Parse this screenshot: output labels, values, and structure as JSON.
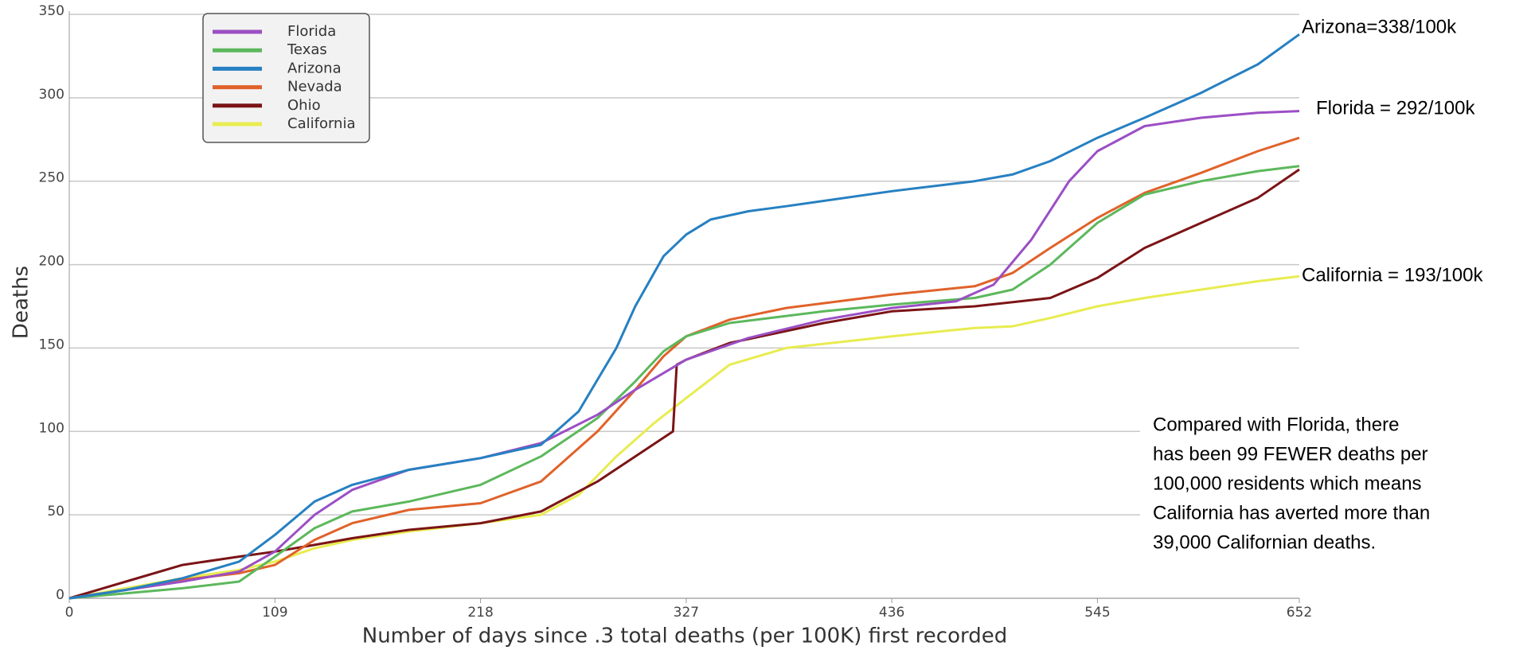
{
  "chart_data": {
    "type": "line",
    "ylabel": "Deaths",
    "xlabel": "Number of days since .3 total deaths (per 100K) first recorded",
    "xlim": [
      0,
      652
    ],
    "xticks": [
      0,
      109,
      218,
      327,
      436,
      545,
      652
    ],
    "ylim": [
      0,
      350
    ],
    "yticks": [
      0,
      50,
      100,
      150,
      200,
      250,
      300,
      350
    ],
    "grid": true,
    "legend": "upper left",
    "series": [
      {
        "name": "Florida",
        "color": "#9b4fc4",
        "x": [
          0,
          30,
          60,
          90,
          109,
          130,
          150,
          180,
          218,
          250,
          280,
          300,
          327,
          360,
          400,
          436,
          470,
          490,
          510,
          530,
          545,
          570,
          600,
          630,
          652
        ],
        "values": [
          0,
          5,
          10,
          16,
          28,
          50,
          65,
          77,
          84,
          93,
          110,
          125,
          143,
          156,
          167,
          174,
          178,
          188,
          215,
          250,
          268,
          283,
          288,
          291,
          292
        ]
      },
      {
        "name": "Texas",
        "color": "#5cb85c",
        "x": [
          0,
          30,
          60,
          90,
          109,
          130,
          150,
          180,
          218,
          250,
          280,
          300,
          315,
          327,
          350,
          400,
          436,
          480,
          500,
          520,
          545,
          570,
          600,
          630,
          652
        ],
        "values": [
          0,
          3,
          6,
          10,
          25,
          42,
          52,
          58,
          68,
          85,
          108,
          130,
          148,
          157,
          165,
          172,
          176,
          180,
          185,
          200,
          225,
          242,
          250,
          256,
          259
        ]
      },
      {
        "name": "Arizona",
        "color": "#2680c2",
        "x": [
          0,
          30,
          60,
          90,
          109,
          130,
          150,
          180,
          218,
          250,
          270,
          290,
          300,
          315,
          327,
          340,
          360,
          380,
          436,
          480,
          500,
          520,
          545,
          570,
          600,
          630,
          652
        ],
        "values": [
          0,
          5,
          12,
          22,
          38,
          58,
          68,
          77,
          84,
          92,
          112,
          150,
          175,
          205,
          218,
          227,
          232,
          235,
          244,
          250,
          254,
          262,
          276,
          288,
          303,
          320,
          338
        ]
      },
      {
        "name": "Nevada",
        "color": "#e0622a",
        "x": [
          0,
          30,
          60,
          90,
          109,
          130,
          150,
          180,
          218,
          250,
          280,
          300,
          315,
          327,
          350,
          380,
          436,
          480,
          500,
          520,
          545,
          570,
          600,
          630,
          652
        ],
        "values": [
          0,
          5,
          11,
          15,
          20,
          35,
          45,
          53,
          57,
          70,
          100,
          125,
          145,
          157,
          167,
          174,
          182,
          187,
          195,
          210,
          228,
          243,
          255,
          268,
          276
        ]
      },
      {
        "name": "Ohio",
        "color": "#7b1416",
        "x": [
          0,
          30,
          60,
          90,
          109,
          130,
          150,
          180,
          218,
          250,
          280,
          300,
          320,
          322,
          327,
          350,
          400,
          436,
          480,
          520,
          545,
          570,
          600,
          630,
          652
        ],
        "values": [
          0,
          10,
          20,
          25,
          28,
          32,
          36,
          41,
          45,
          52,
          70,
          85,
          100,
          140,
          143,
          153,
          165,
          172,
          175,
          180,
          192,
          210,
          225,
          240,
          257
        ]
      },
      {
        "name": "California",
        "color": "#e8ec50",
        "x": [
          0,
          30,
          60,
          90,
          109,
          130,
          150,
          180,
          218,
          250,
          270,
          290,
          310,
          327,
          350,
          380,
          436,
          480,
          500,
          520,
          545,
          570,
          600,
          630,
          652
        ],
        "values": [
          0,
          6,
          12,
          17,
          22,
          30,
          35,
          40,
          45,
          50,
          62,
          85,
          105,
          120,
          140,
          150,
          157,
          162,
          163,
          168,
          175,
          180,
          185,
          190,
          193
        ]
      }
    ],
    "annotations": [
      "Arizona=338/100k",
      "Florida = 292/100k",
      "California = 193/100k"
    ],
    "note": [
      "Compared with Florida, there",
      "has been 99 FEWER deaths per",
      "100,000 residents which means",
      "California has averted more than",
      "39,000 Californian deaths."
    ]
  }
}
